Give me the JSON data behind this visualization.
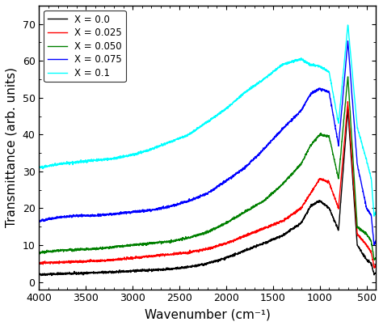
{
  "title": "",
  "xlabel": "Wavenumber (cm⁻¹)",
  "ylabel": "Transmittance (arb. units)",
  "xlim": [
    4000,
    400
  ],
  "ylim": [
    -2,
    75
  ],
  "yticks": [
    0,
    10,
    20,
    30,
    40,
    50,
    60,
    70
  ],
  "xticks": [
    4000,
    3500,
    3000,
    2500,
    2000,
    1500,
    1000,
    500
  ],
  "legend_labels": [
    "X = 0.0",
    "X = 0.025",
    "X = 0.050",
    "X = 0.075",
    "X = 0.1"
  ],
  "line_colors": [
    "black",
    "red",
    "green",
    "blue",
    "cyan"
  ],
  "background_color": "#f0f0f0",
  "series": {
    "X0.0": {
      "x": [
        4000,
        3800,
        3600,
        3400,
        3200,
        3000,
        2800,
        2600,
        2400,
        2200,
        2000,
        1800,
        1600,
        1400,
        1200,
        1100,
        1000,
        900,
        800,
        700,
        600,
        500,
        450,
        420,
        400
      ],
      "y": [
        2.0,
        2.2,
        2.3,
        2.5,
        2.7,
        3.0,
        3.2,
        3.5,
        4.0,
        5.0,
        6.5,
        8.5,
        10.5,
        12.5,
        16.0,
        20.5,
        22.0,
        20.0,
        14.0,
        47.0,
        10.0,
        6.0,
        5.0,
        2.0,
        2.5
      ]
    },
    "X0.025": {
      "x": [
        4000,
        3800,
        3600,
        3400,
        3200,
        3000,
        2800,
        2600,
        2400,
        2200,
        2000,
        1800,
        1600,
        1400,
        1200,
        1100,
        1000,
        900,
        800,
        700,
        600,
        500,
        450,
        420,
        400
      ],
      "y": [
        5.2,
        5.3,
        5.5,
        5.7,
        6.0,
        6.5,
        7.0,
        7.5,
        8.0,
        9.0,
        10.5,
        12.5,
        14.5,
        16.5,
        20.0,
        24.0,
        28.0,
        27.0,
        20.0,
        49.0,
        13.0,
        10.0,
        8.0,
        4.0,
        4.5
      ]
    },
    "X0.050": {
      "x": [
        4000,
        3800,
        3600,
        3400,
        3200,
        3000,
        2800,
        2600,
        2400,
        2200,
        2000,
        1800,
        1600,
        1400,
        1200,
        1100,
        1000,
        900,
        800,
        700,
        600,
        500,
        450,
        420,
        400
      ],
      "y": [
        8.0,
        8.5,
        8.8,
        9.0,
        9.5,
        10.0,
        10.5,
        11.0,
        12.0,
        13.5,
        16.0,
        19.0,
        22.0,
        26.5,
        32.0,
        37.0,
        40.0,
        39.5,
        28.0,
        56.0,
        15.0,
        13.0,
        11.0,
        6.0,
        6.5
      ]
    },
    "X0.075": {
      "x": [
        4000,
        3800,
        3600,
        3400,
        3200,
        3000,
        2800,
        2600,
        2400,
        2200,
        2000,
        1800,
        1600,
        1400,
        1200,
        1100,
        1000,
        900,
        800,
        700,
        600,
        500,
        450,
        420,
        400
      ],
      "y": [
        16.5,
        17.5,
        18.0,
        18.0,
        18.5,
        19.0,
        19.5,
        20.5,
        22.0,
        24.0,
        27.5,
        31.0,
        36.0,
        41.5,
        46.5,
        51.0,
        52.5,
        51.5,
        37.0,
        65.5,
        32.0,
        20.0,
        18.0,
        10.0,
        11.0
      ]
    },
    "X0.1": {
      "x": [
        4000,
        3800,
        3600,
        3400,
        3200,
        3000,
        2800,
        2600,
        2400,
        2200,
        2000,
        1800,
        1600,
        1400,
        1200,
        1100,
        1000,
        900,
        800,
        700,
        600,
        500,
        450,
        420,
        400
      ],
      "y": [
        31.0,
        32.0,
        32.5,
        33.0,
        33.5,
        34.5,
        36.0,
        38.0,
        40.0,
        43.5,
        47.0,
        51.5,
        55.0,
        59.0,
        60.5,
        59.0,
        58.5,
        57.0,
        43.0,
        70.0,
        42.0,
        33.0,
        28.0,
        18.0,
        19.0
      ]
    }
  }
}
